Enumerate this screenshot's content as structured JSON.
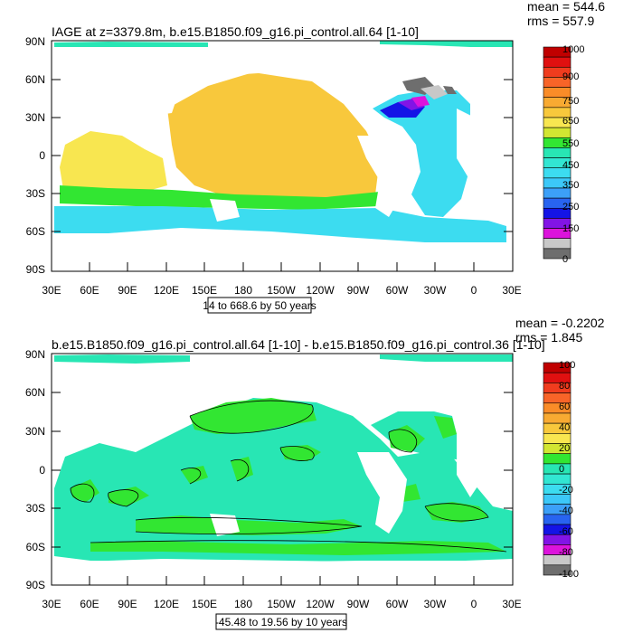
{
  "panels": [
    {
      "title": "IAGE at z=3379.8m, b.e15.B1850.f09_g16.pi_control.all.64 [1-10]",
      "mean_text": "mean = 544.6",
      "rms_text": "rms = 557.9",
      "range_text": "14 to 668.6 by 50 years",
      "lat_labels": [
        "90N",
        "60N",
        "30N",
        "0",
        "30S",
        "60S",
        "90S"
      ],
      "lon_labels": [
        "30E",
        "60E",
        "90E",
        "120E",
        "150E",
        "180",
        "150W",
        "120W",
        "90W",
        "60W",
        "30W",
        "0",
        "30E"
      ],
      "colorbar": {
        "labels": [
          "1000",
          "900",
          "750",
          "650",
          "550",
          "450",
          "350",
          "250",
          "150",
          "0"
        ],
        "colors": [
          "#c00000",
          "#e01010",
          "#f03c1e",
          "#f86428",
          "#fa8c28",
          "#f8aa32",
          "#f8c83c",
          "#f8e650",
          "#d2e632",
          "#32e632",
          "#28e6b4",
          "#32e6d2",
          "#3cdcf0",
          "#3cc8f8",
          "#3ca0f8",
          "#2864f0",
          "#1414e6",
          "#8214e6",
          "#dc14dc",
          "#c8c8c8",
          "#6e6e6e"
        ]
      }
    },
    {
      "title": "b.e15.B1850.f09_g16.pi_control.all.64 [1-10] - b.e15.B1850.f09_g16.pi_control.36 [1-10]",
      "mean_text": "mean = -0.2202",
      "rms_text": "rms = 1.845",
      "range_text": "-45.48 to 19.56 by 10 years",
      "lat_labels": [
        "90N",
        "60N",
        "30N",
        "0",
        "30S",
        "60S",
        "90S"
      ],
      "lon_labels": [
        "30E",
        "60E",
        "90E",
        "120E",
        "150E",
        "180",
        "150W",
        "120W",
        "90W",
        "60W",
        "30W",
        "0",
        "30E"
      ],
      "colorbar": {
        "labels": [
          "100",
          "80",
          "60",
          "40",
          "20",
          "0",
          "-20",
          "-40",
          "-60",
          "-80",
          "-100"
        ],
        "colors": [
          "#c00000",
          "#e01010",
          "#f03c1e",
          "#f86428",
          "#fa8c28",
          "#f8aa32",
          "#f8c83c",
          "#f8e650",
          "#d2e632",
          "#32e632",
          "#28e6b4",
          "#32e6d2",
          "#3cdcf0",
          "#3cc8f8",
          "#3ca0f8",
          "#2864f0",
          "#1414e6",
          "#8214e6",
          "#dc14dc",
          "#c8c8c8",
          "#6e6e6e"
        ]
      }
    }
  ]
}
